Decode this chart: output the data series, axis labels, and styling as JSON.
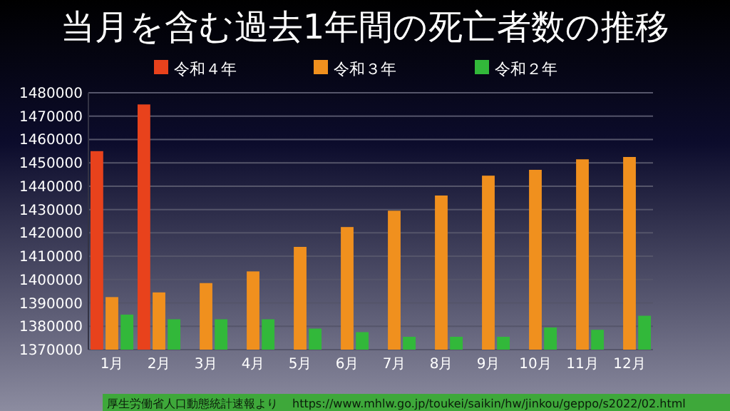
{
  "chart_data": {
    "type": "bar",
    "title": "当月を含む過去1年間の死亡者数の推移",
    "categories": [
      "1月",
      "2月",
      "3月",
      "4月",
      "5月",
      "6月",
      "7月",
      "8月",
      "9月",
      "10月",
      "11月",
      "12月"
    ],
    "series": [
      {
        "name": "令和４年",
        "color": "#e8421c",
        "values": [
          1455000,
          1475000,
          null,
          null,
          null,
          null,
          null,
          null,
          null,
          null,
          null,
          null
        ]
      },
      {
        "name": "令和３年",
        "color": "#f0901e",
        "values": [
          1392500,
          1394500,
          1398500,
          1403500,
          1414000,
          1422500,
          1429500,
          1436000,
          1444500,
          1447000,
          1451500,
          1452500
        ]
      },
      {
        "name": "令和２年",
        "color": "#32b83a",
        "values": [
          1385000,
          1383000,
          1383000,
          1383000,
          1379000,
          1377500,
          1375500,
          1375500,
          1375500,
          1379500,
          1378500,
          1384500
        ]
      }
    ],
    "ylim": [
      1370000,
      1480000
    ],
    "yticks": [
      1370000,
      1380000,
      1390000,
      1400000,
      1410000,
      1420000,
      1430000,
      1440000,
      1450000,
      1460000,
      1470000,
      1480000
    ],
    "grid": "y",
    "legend": "top",
    "annotations": [
      "厚生労働省人口動態統計速報より",
      "https://www.mhlw.go.jp/toukei/saikin/hw/jinkou/geppo/s2022/02.html"
    ]
  }
}
